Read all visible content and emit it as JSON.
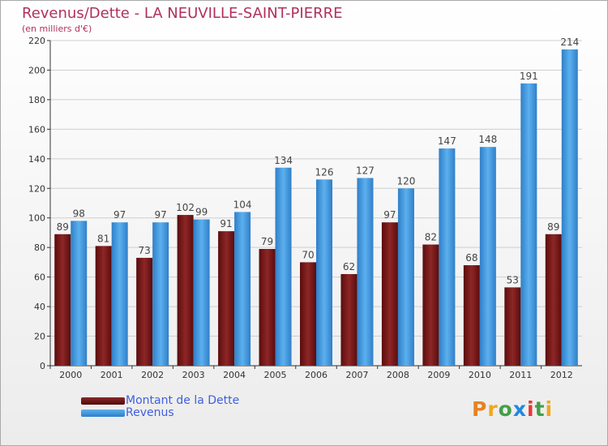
{
  "chart_data": {
    "type": "bar",
    "title": "Revenus/Dette - LA NEUVILLE-SAINT-PIERRE",
    "subtitle": "(en milliers d'€)",
    "categories": [
      "2000",
      "2001",
      "2002",
      "2003",
      "2004",
      "2005",
      "2006",
      "2007",
      "2008",
      "2009",
      "2010",
      "2011",
      "2012"
    ],
    "series": [
      {
        "name": "Montant de la Dette",
        "color": "#6e1414",
        "values": [
          89,
          81,
          73,
          102,
          91,
          79,
          70,
          62,
          97,
          82,
          68,
          53,
          89
        ]
      },
      {
        "name": "Revenus",
        "color": "#3a8fd8",
        "values": [
          98,
          97,
          97,
          99,
          104,
          134,
          126,
          127,
          120,
          147,
          148,
          191,
          214
        ]
      }
    ],
    "ylim": [
      0,
      220
    ],
    "yticks": [
      0,
      20,
      40,
      60,
      80,
      100,
      120,
      140,
      160,
      180,
      200,
      220
    ],
    "grid": true,
    "legend_position": "bottom-left"
  },
  "logo": {
    "letters": [
      "P",
      "r",
      "o",
      "x",
      "i",
      "t",
      "i"
    ],
    "colors": [
      "#e8821e",
      "#f0a81c",
      "#43a047",
      "#1e88e5",
      "#e53935",
      "#43a047",
      "#f0a81c"
    ]
  }
}
